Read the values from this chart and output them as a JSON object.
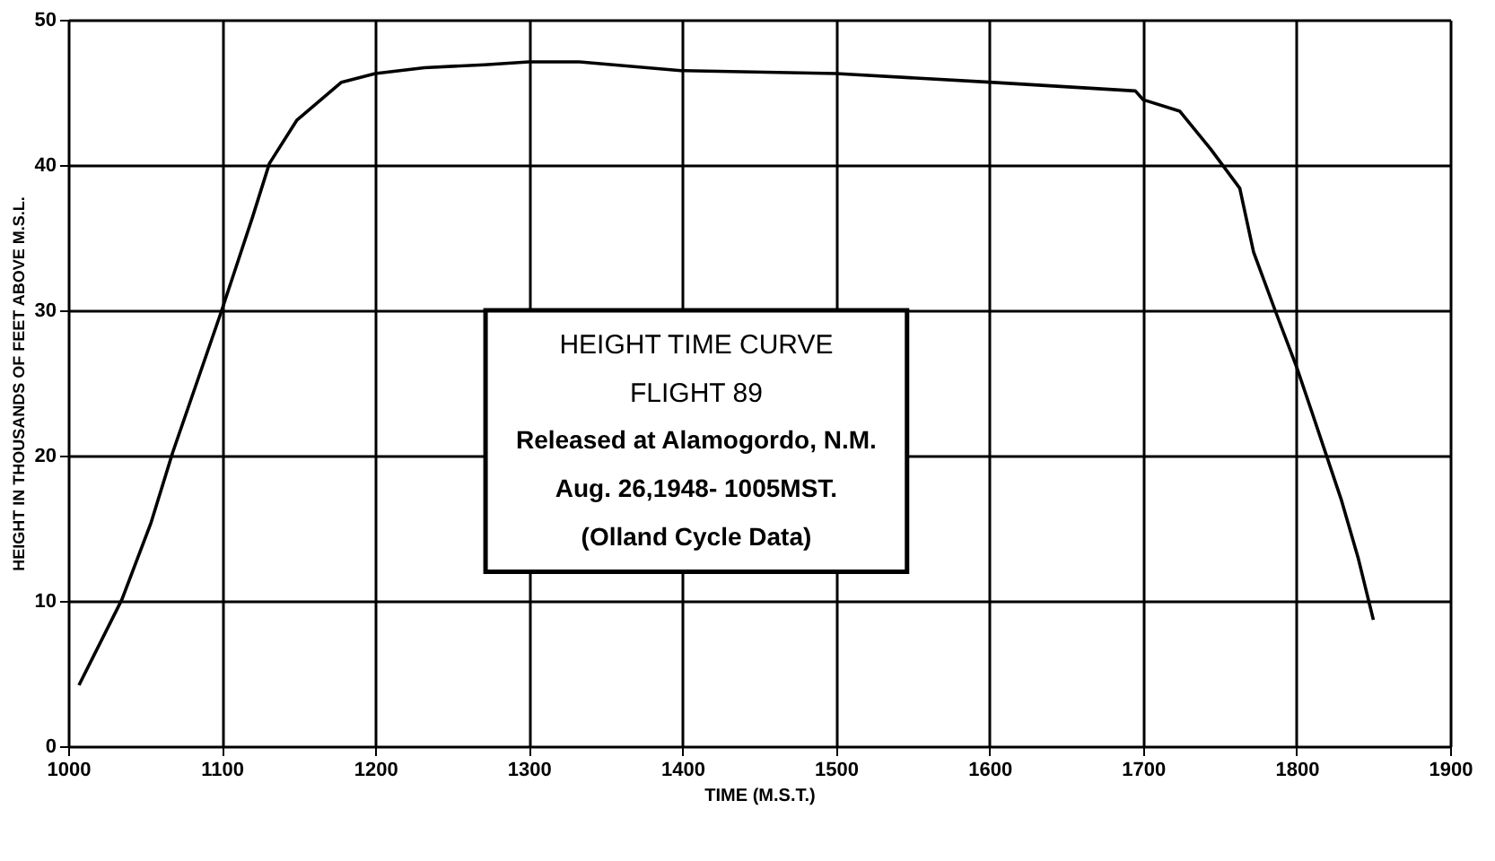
{
  "chart_data": {
    "type": "line",
    "xlabel": "TIME (M.S.T.)",
    "ylabel": "HEIGHT IN THOUSANDS OF FEET ABOVE M.S.L.",
    "annotations": [
      "HEIGHT TIME CURVE",
      "FLIGHT 89",
      "Released at Alamogordo, N.M.",
      "Aug. 26,1948- 1005MST.",
      "(Olland Cycle Data)"
    ],
    "series": [
      {
        "color": "#000000",
        "x": [
          1007,
          1035,
          1054,
          1068,
          1100,
          1120,
          1131,
          1149,
          1178,
          1200,
          1232,
          1271,
          1300,
          1333,
          1399,
          1500,
          1600,
          1695,
          1700,
          1724,
          1744,
          1763,
          1772,
          1786,
          1800,
          1809,
          1829,
          1840,
          1850
        ],
        "values": [
          4.2,
          10.1,
          15.4,
          20.2,
          30,
          36.4,
          40.1,
          43.1,
          45.7,
          46.3,
          46.7,
          46.9,
          47.1,
          47.1,
          46.5,
          46.3,
          45.7,
          45.1,
          44.5,
          43.7,
          41.1,
          38.4,
          34.0,
          30,
          26.1,
          23.3,
          17.0,
          13.0,
          8.7
        ]
      }
    ],
    "xlim": [
      1000,
      1900
    ],
    "ylim": [
      0,
      50
    ],
    "xticks": [
      1000,
      1100,
      1200,
      1300,
      1400,
      1500,
      1600,
      1700,
      1800,
      1900
    ],
    "yticks": [
      0,
      10,
      20,
      30,
      40,
      50
    ],
    "grid": true,
    "marker": "none",
    "line_style": "solid"
  }
}
